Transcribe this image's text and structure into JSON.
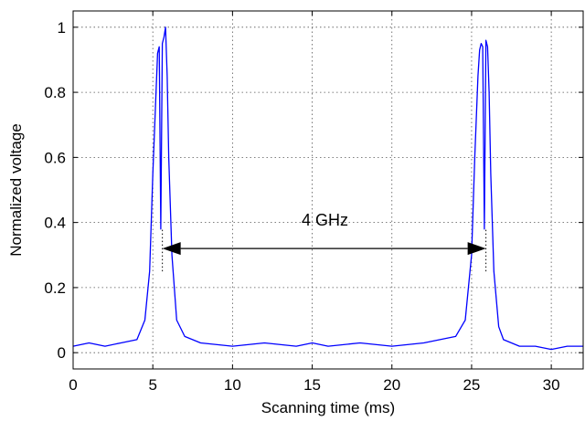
{
  "chart_data": {
    "type": "line",
    "title": "",
    "xlabel": "Scanning time (ms)",
    "ylabel": "Normalized voltage",
    "xlim": [
      0,
      32
    ],
    "ylim": [
      -0.05,
      1.05
    ],
    "xticks": [
      "0",
      "5",
      "10",
      "15",
      "20",
      "25",
      "30"
    ],
    "xtick_values": [
      0,
      5,
      10,
      15,
      20,
      25,
      30
    ],
    "yticks": [
      "0",
      "0.2",
      "0.4",
      "0.6",
      "0.8",
      "1"
    ],
    "ytick_values": [
      0,
      0.2,
      0.4,
      0.6,
      0.8,
      1
    ],
    "grid": true,
    "series": [
      {
        "color": "#0000ff",
        "x": [
          0,
          1,
          2,
          3,
          4,
          4.5,
          4.8,
          5.0,
          5.2,
          5.3,
          5.4,
          5.5,
          5.6,
          5.7,
          5.8,
          5.9,
          6.0,
          6.2,
          6.5,
          7,
          8,
          10,
          12,
          14,
          15,
          16,
          18,
          20,
          22,
          24,
          24.6,
          25.0,
          25.2,
          25.4,
          25.5,
          25.6,
          25.7,
          25.8,
          25.9,
          26.0,
          26.1,
          26.2,
          26.4,
          26.7,
          27,
          28,
          29,
          30,
          31,
          32
        ],
        "y": [
          0.02,
          0.03,
          0.02,
          0.03,
          0.04,
          0.1,
          0.25,
          0.55,
          0.8,
          0.92,
          0.94,
          0.38,
          0.95,
          0.97,
          1.0,
          0.85,
          0.6,
          0.3,
          0.1,
          0.05,
          0.03,
          0.02,
          0.03,
          0.02,
          0.03,
          0.02,
          0.03,
          0.02,
          0.03,
          0.05,
          0.1,
          0.3,
          0.6,
          0.85,
          0.93,
          0.95,
          0.94,
          0.38,
          0.96,
          0.94,
          0.8,
          0.55,
          0.25,
          0.08,
          0.04,
          0.02,
          0.02,
          0.01,
          0.02,
          0.02
        ]
      }
    ],
    "annotations": [
      {
        "type": "double-arrow",
        "text": "4 GHz",
        "x_start": 5.6,
        "x_end": 25.9,
        "y": 0.32,
        "text_x": 15.8,
        "text_y": 0.39
      },
      {
        "type": "vline-dotted",
        "x": 5.6,
        "y_from": 0.25,
        "y_to": 0.38
      },
      {
        "type": "vline-dotted",
        "x": 25.9,
        "y_from": 0.25,
        "y_to": 0.38
      }
    ]
  }
}
